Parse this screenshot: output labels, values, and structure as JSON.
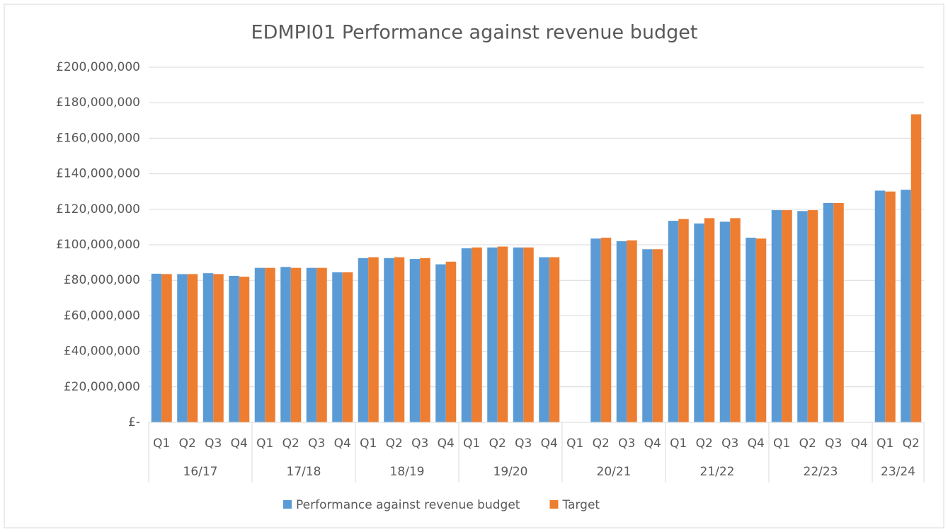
{
  "chart_data": {
    "type": "bar",
    "title": "EDMPI01 Performance against revenue budget",
    "groups": [
      {
        "name": "16/17",
        "categories": [
          "Q1",
          "Q2",
          "Q3",
          "Q4"
        ]
      },
      {
        "name": "17/18",
        "categories": [
          "Q1",
          "Q2",
          "Q3",
          "Q4"
        ]
      },
      {
        "name": "18/19",
        "categories": [
          "Q1",
          "Q2",
          "Q3",
          "Q4"
        ]
      },
      {
        "name": "19/20",
        "categories": [
          "Q1",
          "Q2",
          "Q3",
          "Q4"
        ]
      },
      {
        "name": "20/21",
        "categories": [
          "Q1",
          "Q2",
          "Q3",
          "Q4"
        ]
      },
      {
        "name": "21/22",
        "categories": [
          "Q1",
          "Q2",
          "Q3",
          "Q4"
        ]
      },
      {
        "name": "22/23",
        "categories": [
          "Q1",
          "Q2",
          "Q3",
          "Q4"
        ]
      },
      {
        "name": "23/24",
        "categories": [
          "Q1",
          "Q2"
        ]
      }
    ],
    "series": [
      {
        "name": "Performance against revenue budget",
        "color": "#5b9bd5",
        "values": [
          83700000,
          83500000,
          84000000,
          82500000,
          87000000,
          87500000,
          87000000,
          84500000,
          92500000,
          92500000,
          92000000,
          89000000,
          98000000,
          98500000,
          98500000,
          93000000,
          null,
          103500000,
          102000000,
          97500000,
          113500000,
          112000000,
          113000000,
          104000000,
          119500000,
          119000000,
          123500000,
          null,
          130500000,
          131000000
        ]
      },
      {
        "name": "Target",
        "color": "#ed7d31",
        "values": [
          83500000,
          83500000,
          83500000,
          82000000,
          87000000,
          87000000,
          87000000,
          84500000,
          93000000,
          93000000,
          92500000,
          90500000,
          98500000,
          99000000,
          98500000,
          93000000,
          null,
          104000000,
          102500000,
          97500000,
          114500000,
          115000000,
          115000000,
          103500000,
          119500000,
          119500000,
          123500000,
          null,
          130000000,
          173500000
        ]
      }
    ],
    "ylim": [
      0,
      200000000
    ],
    "yticks": [
      {
        "value": 0,
        "label": "£-"
      },
      {
        "value": 20000000,
        "label": "£20,000,000"
      },
      {
        "value": 40000000,
        "label": "£40,000,000"
      },
      {
        "value": 60000000,
        "label": "£60,000,000"
      },
      {
        "value": 80000000,
        "label": "£80,000,000"
      },
      {
        "value": 100000000,
        "label": "£100,000,000"
      },
      {
        "value": 120000000,
        "label": "£120,000,000"
      },
      {
        "value": 140000000,
        "label": "£140,000,000"
      },
      {
        "value": 160000000,
        "label": "£160,000,000"
      },
      {
        "value": 180000000,
        "label": "£180,000,000"
      },
      {
        "value": 200000000,
        "label": "£200,000,000"
      }
    ],
    "grid": true,
    "legend": "bottom"
  }
}
